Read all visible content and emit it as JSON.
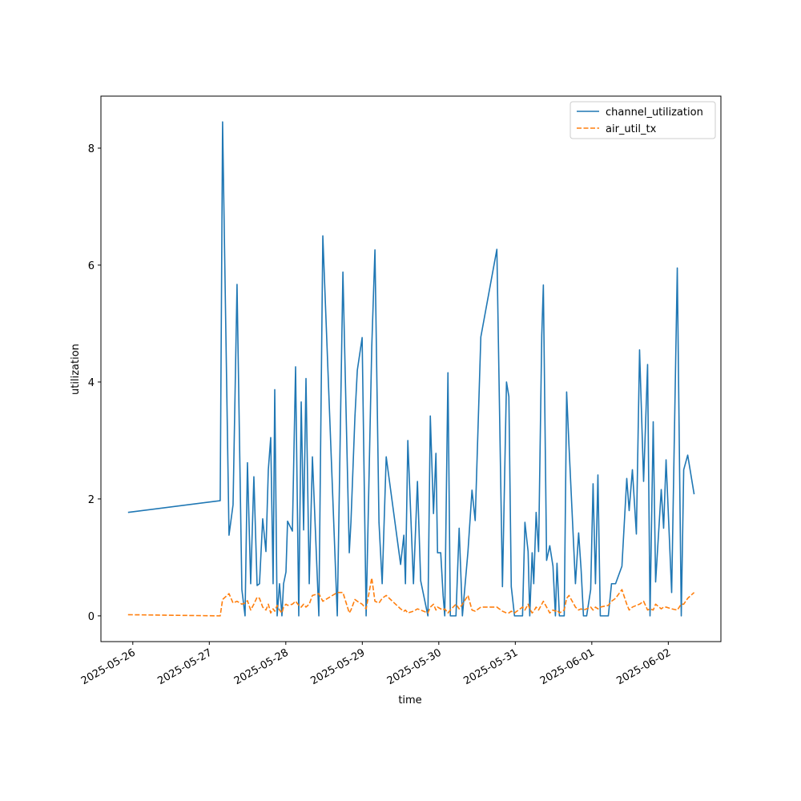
{
  "chart_data": {
    "type": "line",
    "x_label": "time",
    "y_label": "utilization",
    "x": [
      "2025-05-25T22:30",
      "2025-05-27T03:25",
      "2025-05-27T04:10",
      "2025-05-27T06:11",
      "2025-05-27T07:27",
      "2025-05-27T08:42",
      "2025-05-27T10:13",
      "2025-05-27T11:13",
      "2025-05-27T11:58",
      "2025-05-27T12:59",
      "2025-05-27T13:59",
      "2025-05-27T15:00",
      "2025-05-27T15:45",
      "2025-05-27T16:45",
      "2025-05-27T17:46",
      "2025-05-27T18:31",
      "2025-05-27T19:16",
      "2025-05-27T20:01",
      "2025-05-27T20:32",
      "2025-05-27T21:17",
      "2025-05-27T22:02",
      "2025-05-27T22:47",
      "2025-05-27T23:18",
      "2025-05-28T00:03",
      "2025-05-28T00:33",
      "2025-05-28T02:04",
      "2025-05-28T03:04",
      "2025-05-28T04:04",
      "2025-05-28T04:50",
      "2025-05-28T05:35",
      "2025-05-28T06:20",
      "2025-05-28T07:21",
      "2025-05-28T08:21",
      "2025-05-28T10:22",
      "2025-05-28T11:37",
      "2025-05-28T16:09",
      "2025-05-28T17:55",
      "2025-05-28T19:55",
      "2025-05-28T20:26",
      "2025-05-28T21:41",
      "2025-05-28T22:26",
      "2025-05-28T23:57",
      "2025-05-29T01:12",
      "2025-05-29T02:58",
      "2025-05-29T03:58",
      "2025-05-29T05:14",
      "2025-05-29T06:14",
      "2025-05-29T07:30",
      "2025-05-29T12:01",
      "2025-05-29T13:02",
      "2025-05-29T13:32",
      "2025-05-29T14:17",
      "2025-05-29T16:03",
      "2025-05-29T17:18",
      "2025-05-29T18:19",
      "2025-05-29T20:35",
      "2025-05-29T21:20",
      "2025-05-29T22:20",
      "2025-05-29T23:06",
      "2025-05-29T23:36",
      "2025-05-30T00:36",
      "2025-05-30T01:21",
      "2025-05-30T01:52",
      "2025-05-30T02:52",
      "2025-05-30T03:37",
      "2025-05-30T05:23",
      "2025-05-30T06:23",
      "2025-05-30T07:24",
      "2025-05-30T09:09",
      "2025-05-30T10:25",
      "2025-05-30T11:25",
      "2025-05-30T13:11",
      "2025-05-30T18:13",
      "2025-05-30T19:58",
      "2025-05-30T21:14",
      "2025-05-30T21:59",
      "2025-05-30T22:44",
      "2025-05-30T23:45",
      "2025-05-31T02:16",
      "2025-05-31T03:01",
      "2025-05-31T04:01",
      "2025-05-31T04:32",
      "2025-05-31T05:17",
      "2025-05-31T05:47",
      "2025-05-31T06:32",
      "2025-05-31T07:18",
      "2025-05-31T08:18",
      "2025-05-31T08:48",
      "2025-05-31T09:49",
      "2025-05-31T10:49",
      "2025-05-31T11:49",
      "2025-05-31T12:35",
      "2025-05-31T13:05",
      "2025-05-31T13:50",
      "2025-05-31T15:21",
      "2025-05-31T16:06",
      "2025-05-31T16:51",
      "2025-05-31T18:52",
      "2025-05-31T19:52",
      "2025-05-31T20:38",
      "2025-05-31T21:23",
      "2025-05-31T22:23",
      "2025-05-31T23:39",
      "2025-06-01T00:24",
      "2025-06-01T01:09",
      "2025-06-01T01:55",
      "2025-06-01T02:40",
      "2025-06-01T05:11",
      "2025-06-01T06:11",
      "2025-06-01T07:27",
      "2025-06-01T09:27",
      "2025-06-01T10:58",
      "2025-06-01T11:43",
      "2025-06-01T12:44",
      "2025-06-01T13:59",
      "2025-06-01T14:59",
      "2025-06-01T16:15",
      "2025-06-01T17:30",
      "2025-06-01T18:16",
      "2025-06-01T19:16",
      "2025-06-01T20:01",
      "2025-06-01T21:47",
      "2025-06-01T22:32",
      "2025-06-01T23:18",
      "2025-06-02T01:03",
      "2025-06-02T02:49",
      "2025-06-02T04:04",
      "2025-06-02T04:50",
      "2025-06-02T06:05",
      "2025-06-02T08:06"
    ],
    "series": [
      {
        "name": "channel_utilization",
        "color": "#1f77b4",
        "linestyle": "solid",
        "values": [
          1.77,
          1.97,
          8.45,
          1.38,
          1.9,
          5.67,
          0.45,
          0,
          2.62,
          0.55,
          2.38,
          0.52,
          0.55,
          1.66,
          1.1,
          2.5,
          3.05,
          0.55,
          3.87,
          0,
          0.55,
          0,
          0.55,
          0.75,
          1.62,
          1.45,
          4.26,
          0,
          3.66,
          1.47,
          4.06,
          0.55,
          2.72,
          0,
          6.5,
          0,
          5.88,
          1.08,
          1.6,
          3.4,
          4.2,
          4.76,
          0,
          4.6,
          6.26,
          1.6,
          0.55,
          2.72,
          0.88,
          1.38,
          0.55,
          3.0,
          0.55,
          2.3,
          0.6,
          0,
          3.42,
          1.75,
          2.78,
          1.08,
          1.08,
          0.35,
          0,
          4.16,
          0,
          0,
          1.5,
          0,
          1.1,
          2.15,
          1.63,
          4.77,
          6.27,
          0.5,
          4.0,
          3.75,
          0.5,
          0,
          0,
          1.6,
          1.1,
          0,
          1.08,
          0.55,
          1.77,
          1.1,
          4.8,
          5.66,
          0.95,
          1.2,
          0.85,
          0,
          0.9,
          0,
          0,
          3.83,
          2.9,
          0.55,
          1.42,
          0.8,
          0,
          0,
          0.45,
          2.26,
          0.55,
          2.41,
          0,
          0,
          0.55,
          0.55,
          0.85,
          2.35,
          1.8,
          2.5,
          1.4,
          4.55,
          2.3,
          4.3,
          0,
          3.32,
          0.58,
          2.16,
          1.5,
          2.67,
          0.4,
          5.95,
          0,
          2.5,
          2.75,
          2.08
        ]
      },
      {
        "name": "air_util_tx",
        "color": "#ff7f0e",
        "linestyle": "dashed",
        "values": [
          0.02,
          0,
          0.28,
          0.38,
          0.22,
          0.25,
          0.2,
          0.22,
          0.26,
          0.1,
          0.2,
          0.32,
          0.3,
          0.15,
          0.1,
          0.2,
          0.05,
          0.12,
          0.08,
          0.18,
          0.1,
          0.05,
          0.15,
          0.2,
          0.18,
          0.2,
          0.25,
          0.18,
          0.15,
          0.2,
          0.15,
          0.2,
          0.35,
          0.38,
          0.25,
          0.4,
          0.4,
          0.05,
          0.1,
          0.28,
          0.25,
          0.2,
          0.12,
          0.65,
          0.25,
          0.22,
          0.3,
          0.35,
          0.12,
          0.08,
          0.1,
          0.05,
          0.08,
          0.12,
          0.1,
          0.05,
          0.15,
          0.2,
          0.1,
          0.15,
          0.12,
          0.1,
          0.12,
          0.05,
          0.1,
          0.2,
          0.12,
          0.2,
          0.35,
          0.1,
          0.08,
          0.15,
          0.15,
          0.08,
          0.05,
          0.05,
          0.08,
          0.05,
          0.15,
          0.1,
          0.2,
          0.12,
          0.05,
          0.08,
          0.15,
          0.1,
          0.2,
          0.25,
          0.15,
          0.05,
          0.1,
          0.08,
          0.1,
          0.05,
          0.1,
          0.3,
          0.35,
          0.15,
          0.1,
          0.12,
          0.1,
          0.12,
          0.15,
          0.1,
          0.15,
          0.12,
          0.15,
          0.18,
          0.25,
          0.3,
          0.45,
          0.2,
          0.1,
          0.15,
          0.18,
          0.2,
          0.25,
          0.1,
          0.12,
          0.1,
          0.2,
          0.12,
          0.15,
          0.15,
          0.12,
          0.1,
          0.2,
          0.2,
          0.3,
          0.4
        ]
      }
    ],
    "xlim": [
      "2025-05-25T14:00",
      "2025-06-02T16:30"
    ],
    "xticks": [
      "2025-05-26",
      "2025-05-27",
      "2025-05-28",
      "2025-05-29",
      "2025-05-30",
      "2025-05-31",
      "2025-06-01",
      "2025-06-02"
    ],
    "ylim": [
      -0.44,
      8.89
    ],
    "yticks": [
      0,
      2,
      4,
      6,
      8
    ],
    "legend": "upper right"
  }
}
